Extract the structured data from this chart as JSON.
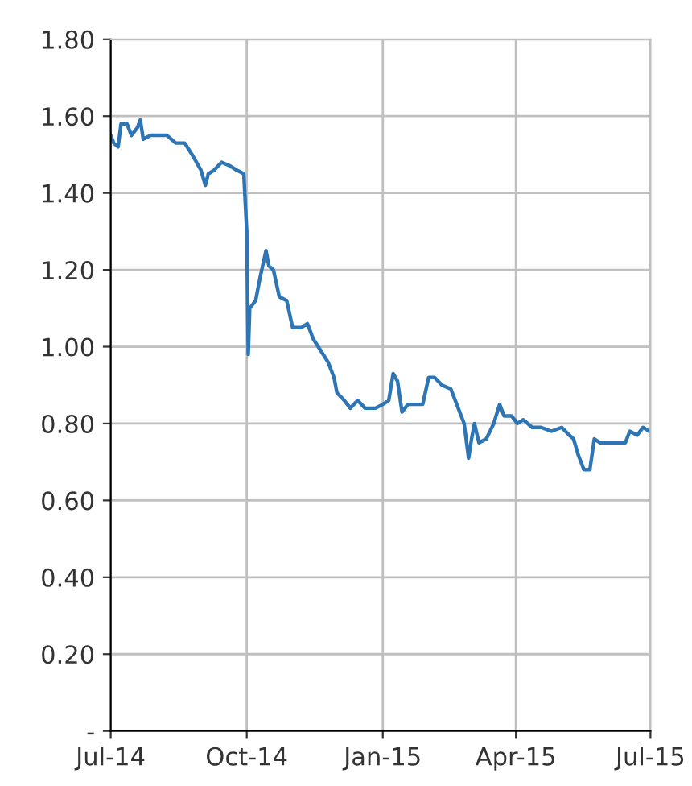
{
  "chart_data": {
    "type": "line",
    "grid": true,
    "legend": false,
    "marker": "none",
    "line_style": "solid",
    "x": [
      "2014-07-01",
      "2014-07-03",
      "2014-07-06",
      "2014-07-08",
      "2014-07-12",
      "2014-07-15",
      "2014-07-19",
      "2014-07-21",
      "2014-07-23",
      "2014-07-28",
      "2014-08-02",
      "2014-08-08",
      "2014-08-14",
      "2014-08-20",
      "2014-08-25",
      "2014-08-31",
      "2014-09-03",
      "2014-09-05",
      "2014-09-09",
      "2014-09-14",
      "2014-09-20",
      "2014-09-24",
      "2014-09-29",
      "2014-10-01",
      "2014-10-02",
      "2014-10-03",
      "2014-10-07",
      "2014-10-10",
      "2014-10-14",
      "2014-10-16",
      "2014-10-19",
      "2014-10-23",
      "2014-10-28",
      "2014-11-01",
      "2014-11-07",
      "2014-11-11",
      "2014-11-15",
      "2014-11-20",
      "2014-11-25",
      "2014-11-29",
      "2014-12-01",
      "2014-12-06",
      "2014-12-10",
      "2014-12-15",
      "2014-12-20",
      "2014-12-27",
      "2015-01-01",
      "2015-01-05",
      "2015-01-08",
      "2015-01-11",
      "2015-01-14",
      "2015-01-18",
      "2015-01-23",
      "2015-01-28",
      "2015-02-01",
      "2015-02-05",
      "2015-02-10",
      "2015-02-16",
      "2015-02-20",
      "2015-02-25",
      "2015-02-28",
      "2015-03-02",
      "2015-03-04",
      "2015-03-07",
      "2015-03-12",
      "2015-03-17",
      "2015-03-21",
      "2015-03-24",
      "2015-03-29",
      "2015-04-02",
      "2015-04-06",
      "2015-04-12",
      "2015-04-18",
      "2015-04-25",
      "2015-05-02",
      "2015-05-07",
      "2015-05-10",
      "2015-05-13",
      "2015-05-17",
      "2015-05-21",
      "2015-05-24",
      "2015-05-28",
      "2015-06-05",
      "2015-06-14",
      "2015-06-17",
      "2015-06-22",
      "2015-06-26",
      "2015-06-30"
    ],
    "series": [
      {
        "color": "#2e75b6",
        "values": [
          1.55,
          1.53,
          1.52,
          1.58,
          1.58,
          1.55,
          1.57,
          1.59,
          1.54,
          1.55,
          1.55,
          1.55,
          1.53,
          1.53,
          1.5,
          1.46,
          1.42,
          1.45,
          1.46,
          1.48,
          1.47,
          1.46,
          1.45,
          1.3,
          0.98,
          1.1,
          1.12,
          1.18,
          1.25,
          1.21,
          1.2,
          1.13,
          1.12,
          1.05,
          1.05,
          1.06,
          1.02,
          0.99,
          0.96,
          0.92,
          0.88,
          0.86,
          0.84,
          0.86,
          0.84,
          0.84,
          0.85,
          0.86,
          0.93,
          0.91,
          0.83,
          0.85,
          0.85,
          0.85,
          0.92,
          0.92,
          0.9,
          0.89,
          0.85,
          0.8,
          0.71,
          0.76,
          0.8,
          0.75,
          0.76,
          0.8,
          0.85,
          0.82,
          0.82,
          0.8,
          0.81,
          0.79,
          0.79,
          0.78,
          0.79,
          0.77,
          0.76,
          0.72,
          0.68,
          0.68,
          0.76,
          0.75,
          0.75,
          0.75,
          0.78,
          0.77,
          0.79,
          0.78
        ]
      }
    ],
    "xlim": [
      "2014-07-01",
      "2015-07-01"
    ],
    "xticks": [
      {
        "value": "2014-07-01",
        "label": "Jul-14"
      },
      {
        "value": "2014-10-01",
        "label": "Oct-14"
      },
      {
        "value": "2015-01-01",
        "label": "Jan-15"
      },
      {
        "value": "2015-04-01",
        "label": "Apr-15"
      },
      {
        "value": "2015-07-01",
        "label": "Jul-15"
      }
    ],
    "ylim": [
      0,
      1.8
    ],
    "yticks": [
      {
        "value": 0,
        "label": "-"
      },
      {
        "value": 0.2,
        "label": "0.20"
      },
      {
        "value": 0.4,
        "label": "0.40"
      },
      {
        "value": 0.6,
        "label": "0.60"
      },
      {
        "value": 0.8,
        "label": "0.80"
      },
      {
        "value": 1.0,
        "label": "1.00"
      },
      {
        "value": 1.2,
        "label": "1.20"
      },
      {
        "value": 1.4,
        "label": "1.40"
      },
      {
        "value": 1.6,
        "label": "1.60"
      },
      {
        "value": 1.8,
        "label": "1.80"
      }
    ]
  }
}
